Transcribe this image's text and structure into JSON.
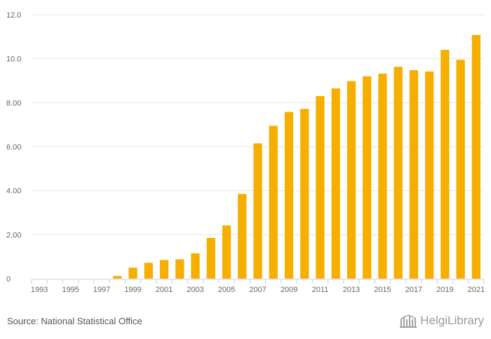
{
  "chart_data": {
    "type": "bar",
    "title": "",
    "xlabel": "",
    "ylabel": "",
    "ylim": [
      0,
      12
    ],
    "yticks": [
      0,
      2,
      4,
      6,
      8,
      10,
      12
    ],
    "ytick_labels": [
      "0",
      "2.00",
      "4.00",
      "6.00",
      "8.00",
      "10.0",
      "12.0"
    ],
    "categories": [
      "1993",
      "1994",
      "1995",
      "1996",
      "1997",
      "1998",
      "1999",
      "2000",
      "2001",
      "2002",
      "2003",
      "2004",
      "2005",
      "2006",
      "2007",
      "2008",
      "2009",
      "2010",
      "2011",
      "2012",
      "2013",
      "2014",
      "2015",
      "2016",
      "2017",
      "2018",
      "2019",
      "2020",
      "2021"
    ],
    "xtick_labels": [
      "1993",
      "1995",
      "1997",
      "1999",
      "2001",
      "2003",
      "2005",
      "2007",
      "2009",
      "2011",
      "2013",
      "2015",
      "2017",
      "2019",
      "2021"
    ],
    "values": [
      0,
      0,
      0,
      0,
      0,
      0.12,
      0.5,
      0.72,
      0.85,
      0.88,
      1.15,
      1.85,
      2.42,
      3.85,
      6.15,
      6.95,
      7.58,
      7.72,
      8.3,
      8.65,
      8.98,
      9.2,
      9.32,
      9.63,
      9.48,
      9.42,
      10.4,
      9.95,
      11.08
    ],
    "color": "#f6ae00"
  },
  "footer": {
    "source": "Source: National Statistical Office",
    "brand": "HelgiLibrary",
    "brand_icon": "library-building-icon"
  }
}
